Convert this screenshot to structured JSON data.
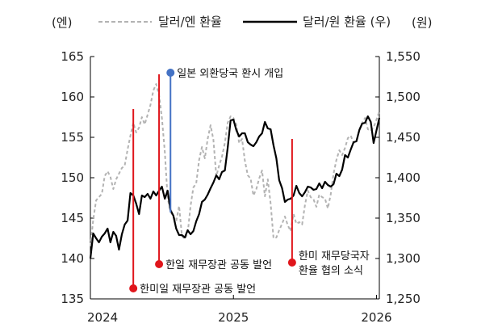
{
  "chart_data": {
    "type": "line",
    "units": {
      "left": "(엔)",
      "right": "(원)"
    },
    "legend": [
      {
        "name": "달러/엔 환율",
        "color": "#b3b3b3",
        "style": "dashed"
      },
      {
        "name": "달러/원 환율 (우)",
        "color": "#000000",
        "style": "solid"
      }
    ],
    "legend_placement": "top",
    "x_axis": {
      "range": [
        2024.0,
        2026.02
      ],
      "ticks": [
        "2024",
        "2025",
        "2026"
      ],
      "tick_values": [
        2024.0,
        2025.0,
        2026.0
      ]
    },
    "y_left": {
      "range": [
        135,
        165
      ],
      "ticks": [
        "135",
        "140",
        "145",
        "150",
        "155",
        "160",
        "165"
      ],
      "tick_values": [
        135,
        140,
        145,
        150,
        155,
        160,
        165
      ]
    },
    "y_right": {
      "range": [
        1250,
        1550
      ],
      "ticks": [
        "1,250",
        "1,300",
        "1,350",
        "1,400",
        "1,450",
        "1,500",
        "1,550"
      ],
      "tick_values": [
        1250,
        1300,
        1350,
        1400,
        1450,
        1500,
        1550
      ]
    },
    "grid": false,
    "series": [
      {
        "name": "달러/엔 환율",
        "axis": "left",
        "x": [
          2024.0,
          2024.02,
          2024.04,
          2024.06,
          2024.08,
          2024.1,
          2024.12,
          2024.14,
          2024.16,
          2024.18,
          2024.2,
          2024.22,
          2024.24,
          2024.26,
          2024.28,
          2024.3,
          2024.32,
          2024.34,
          2024.36,
          2024.38,
          2024.4,
          2024.42,
          2024.44,
          2024.46,
          2024.48,
          2024.5,
          2024.52,
          2024.54,
          2024.56,
          2024.58,
          2024.6,
          2024.62,
          2024.64,
          2024.66,
          2024.68,
          2024.7,
          2024.72,
          2024.74,
          2024.76,
          2024.78,
          2024.8,
          2024.82,
          2024.84,
          2024.86,
          2024.88,
          2024.9,
          2024.92,
          2024.94,
          2024.96,
          2024.98,
          2025.0,
          2025.02,
          2025.04,
          2025.06,
          2025.08,
          2025.1,
          2025.12,
          2025.14,
          2025.16,
          2025.18,
          2025.2,
          2025.22,
          2025.24,
          2025.26,
          2025.28,
          2025.3,
          2025.32,
          2025.34,
          2025.36,
          2025.38,
          2025.4,
          2025.42,
          2025.44,
          2025.46,
          2025.48,
          2025.5,
          2025.52,
          2025.54,
          2025.56,
          2025.58,
          2025.6,
          2025.62,
          2025.64,
          2025.66,
          2025.68,
          2025.7,
          2025.72,
          2025.74,
          2025.76,
          2025.78,
          2025.8,
          2025.82,
          2025.84,
          2025.86,
          2025.88,
          2025.9,
          2025.92,
          2025.94,
          2025.96,
          2025.98,
          2026.02
        ],
        "y": [
          141.5,
          144.8,
          147.2,
          147.6,
          148.0,
          150.2,
          150.8,
          150.1,
          148.6,
          149.8,
          150.5,
          151.2,
          151.5,
          153.5,
          155.2,
          156.8,
          155.6,
          156.2,
          157.5,
          156.6,
          157.8,
          159.0,
          160.8,
          161.6,
          160.2,
          157.4,
          153.2,
          147.5,
          145.8,
          145.2,
          144.6,
          146.5,
          142.8,
          142.4,
          143.1,
          146.5,
          148.8,
          149.3,
          152.2,
          153.8,
          152.4,
          154.8,
          156.5,
          154.7,
          150.2,
          151.5,
          152.6,
          154.3,
          156.8,
          157.6,
          157.4,
          156.6,
          154.3,
          154.8,
          152.1,
          150.3,
          149.9,
          147.8,
          148.6,
          149.9,
          150.9,
          147.7,
          149.8,
          146.8,
          142.5,
          142.6,
          143.5,
          144.3,
          145.2,
          144.1,
          143.4,
          145.5,
          144.3,
          144.5,
          144.2,
          146.6,
          148.4,
          147.6,
          147.3,
          146.4,
          147.9,
          147.6,
          147.4,
          146.2,
          147.9,
          150.5,
          152.2,
          153.4,
          152.8,
          153.7,
          154.9,
          155.2,
          154.3,
          154.6,
          155.9,
          156.8,
          157.4,
          156.0,
          155.8,
          156.2,
          158.2
        ]
      },
      {
        "name": "달러/원 환율 (우)",
        "axis": "right",
        "x": [
          2024.0,
          2024.02,
          2024.04,
          2024.06,
          2024.08,
          2024.1,
          2024.12,
          2024.14,
          2024.16,
          2024.18,
          2024.2,
          2024.22,
          2024.24,
          2024.26,
          2024.28,
          2024.3,
          2024.32,
          2024.34,
          2024.36,
          2024.38,
          2024.4,
          2024.42,
          2024.44,
          2024.46,
          2024.48,
          2024.5,
          2024.52,
          2024.54,
          2024.56,
          2024.58,
          2024.6,
          2024.62,
          2024.64,
          2024.66,
          2024.68,
          2024.7,
          2024.72,
          2024.74,
          2024.76,
          2024.78,
          2024.8,
          2024.82,
          2024.84,
          2024.86,
          2024.88,
          2024.9,
          2024.92,
          2024.94,
          2024.96,
          2024.98,
          2025.0,
          2025.02,
          2025.04,
          2025.06,
          2025.08,
          2025.1,
          2025.12,
          2025.14,
          2025.16,
          2025.18,
          2025.2,
          2025.22,
          2025.24,
          2025.26,
          2025.28,
          2025.3,
          2025.32,
          2025.34,
          2025.36,
          2025.38,
          2025.4,
          2025.42,
          2025.44,
          2025.46,
          2025.48,
          2025.5,
          2025.52,
          2025.54,
          2025.56,
          2025.58,
          2025.6,
          2025.62,
          2025.64,
          2025.66,
          2025.68,
          2025.7,
          2025.72,
          2025.74,
          2025.76,
          2025.78,
          2025.8,
          2025.82,
          2025.84,
          2025.86,
          2025.88,
          2025.9,
          2025.92,
          2025.94,
          2025.96,
          2025.98,
          2026.02
        ],
        "y": [
          1300,
          1331,
          1325,
          1320,
          1327,
          1331,
          1337,
          1320,
          1333,
          1328,
          1311,
          1330,
          1342,
          1347,
          1381,
          1378,
          1368,
          1355,
          1378,
          1376,
          1380,
          1374,
          1383,
          1378,
          1384,
          1389,
          1374,
          1384,
          1360,
          1353,
          1337,
          1329,
          1329,
          1326,
          1335,
          1330,
          1334,
          1346,
          1355,
          1370,
          1373,
          1379,
          1387,
          1394,
          1403,
          1398,
          1407,
          1409,
          1437,
          1471,
          1472,
          1459,
          1451,
          1455,
          1455,
          1444,
          1441,
          1439,
          1444,
          1451,
          1455,
          1469,
          1461,
          1460,
          1440,
          1424,
          1397,
          1387,
          1370,
          1373,
          1374,
          1378,
          1390,
          1381,
          1377,
          1382,
          1389,
          1388,
          1385,
          1386,
          1393,
          1387,
          1395,
          1391,
          1389,
          1392,
          1405,
          1402,
          1410,
          1428,
          1425,
          1435,
          1444,
          1445,
          1459,
          1467,
          1468,
          1476,
          1469,
          1443,
          1474
        ]
      }
    ],
    "annotations": [
      {
        "label": "한미일 재무장관 공동 발언",
        "x": 2024.3,
        "axis": "left",
        "y_top": 158.5,
        "y_bottom": 136.3,
        "color": "#e0161c",
        "label_side": "right"
      },
      {
        "label": "한일 재무장관 공동 발언",
        "x": 2024.48,
        "axis": "left",
        "y_top": 162.8,
        "y_bottom": 139.3,
        "color": "#e0161c",
        "label_side": "right"
      },
      {
        "label": "일본 외환당국 환시 개입",
        "x": 2024.56,
        "axis": "left",
        "y_top": 163.0,
        "y_bottom": 145.7,
        "color": "#4472c4",
        "label_side": "right"
      },
      {
        "label_lines": [
          "한미 재무당국자",
          "환율 협의 소식"
        ],
        "x": 2025.41,
        "axis": "left",
        "y_top": 154.8,
        "y_bottom": 139.5,
        "color": "#e0161c",
        "label_side": "right"
      }
    ]
  }
}
